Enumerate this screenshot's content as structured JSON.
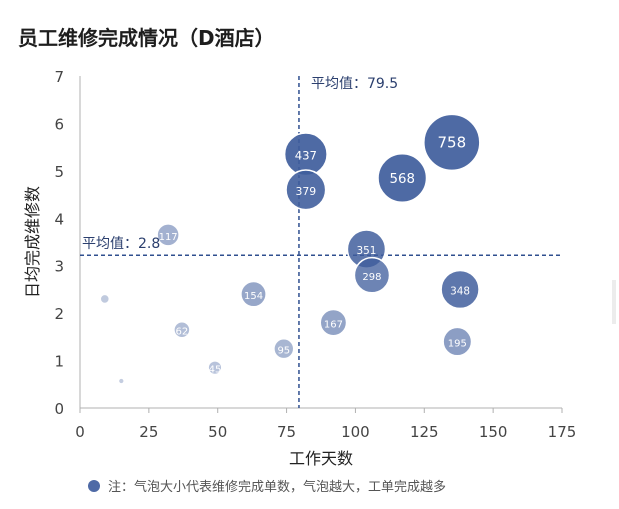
{
  "chart_data": {
    "type": "scatter",
    "title": "员工维修完成情况（D酒店）",
    "xlabel": "工作天数",
    "ylabel": "日均完成维修数",
    "xlim": [
      0,
      175
    ],
    "ylim": [
      0,
      7
    ],
    "xticks": [
      "0",
      "25",
      "50",
      "75",
      "100",
      "125",
      "150",
      "175"
    ],
    "yticks": [
      "0",
      "1",
      "2",
      "3",
      "4",
      "5",
      "6",
      "7"
    ],
    "grid": false,
    "points": [
      {
        "x": 135,
        "y": 5.6,
        "size": 758,
        "label": "758"
      },
      {
        "x": 117,
        "y": 4.85,
        "size": 568,
        "label": "568"
      },
      {
        "x": 82,
        "y": 5.35,
        "size": 437,
        "label": "437"
      },
      {
        "x": 82,
        "y": 4.6,
        "size": 379,
        "label": "379"
      },
      {
        "x": 104,
        "y": 3.35,
        "size": 351,
        "label": "351"
      },
      {
        "x": 138,
        "y": 2.5,
        "size": 348,
        "label": "348"
      },
      {
        "x": 106,
        "y": 2.8,
        "size": 298,
        "label": "298"
      },
      {
        "x": 137,
        "y": 1.4,
        "size": 195,
        "label": "195"
      },
      {
        "x": 92,
        "y": 1.8,
        "size": 167,
        "label": "167"
      },
      {
        "x": 63,
        "y": 2.4,
        "size": 154,
        "label": "154"
      },
      {
        "x": 32,
        "y": 3.65,
        "size": 117,
        "label": "117"
      },
      {
        "x": 74,
        "y": 1.25,
        "size": 95,
        "label": "95"
      },
      {
        "x": 37,
        "y": 1.65,
        "size": 62,
        "label": "62"
      },
      {
        "x": 49,
        "y": 0.85,
        "size": 45,
        "label": "45"
      },
      {
        "x": 9,
        "y": 2.3,
        "size": 20,
        "label": ""
      },
      {
        "x": 15,
        "y": 0.57,
        "size": 8,
        "label": ""
      }
    ],
    "reference_lines": [
      {
        "axis": "x",
        "value": 79.5,
        "label": "平均值：79.5"
      },
      {
        "axis": "y",
        "value": 2.8,
        "label": "平均值：2.8"
      }
    ],
    "note": "注：气泡大小代表维修完成单数，气泡越大，工单完成越多"
  },
  "colors": {
    "bubble_dark": "#3f5d9c",
    "bubble_light": "#c7cfea",
    "reference_line": "#2f4f8f",
    "axis": "#b0b0b0"
  }
}
